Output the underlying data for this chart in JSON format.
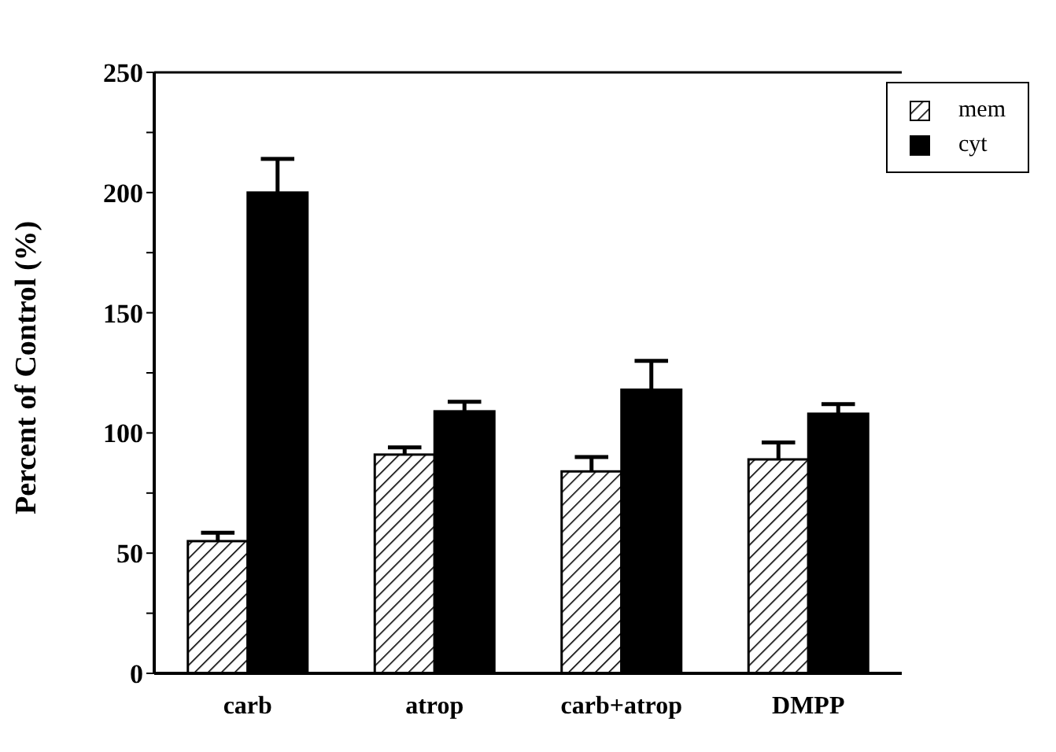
{
  "chart_data": {
    "type": "bar",
    "ylabel": "Percent of Control (%)",
    "categories": [
      "carb",
      "atrop",
      "carb+atrop",
      "DMPP"
    ],
    "series": [
      {
        "name": "mem",
        "color": "#000000",
        "values": [
          55,
          91,
          84,
          89
        ],
        "errors": [
          [
            55,
            58.5
          ],
          [
            91,
            94
          ],
          [
            84,
            90
          ],
          [
            89,
            96
          ]
        ]
      },
      {
        "name": "cyt",
        "color": "#000000",
        "values": [
          200,
          109,
          118,
          108
        ],
        "errors": [
          [
            200,
            214
          ],
          [
            109,
            113
          ],
          [
            118,
            130
          ],
          [
            108,
            112
          ]
        ]
      }
    ],
    "ylim": [
      0,
      250
    ],
    "yticks": [
      0,
      {
        "value": 25,
        "label": null
      },
      50,
      {
        "value": 75,
        "label": null
      },
      100,
      {
        "value": 125,
        "label": null
      },
      150,
      {
        "value": 175,
        "label": null
      },
      200,
      {
        "value": 225,
        "label": null
      },
      250
    ],
    "grid": false,
    "legend": "top right"
  }
}
